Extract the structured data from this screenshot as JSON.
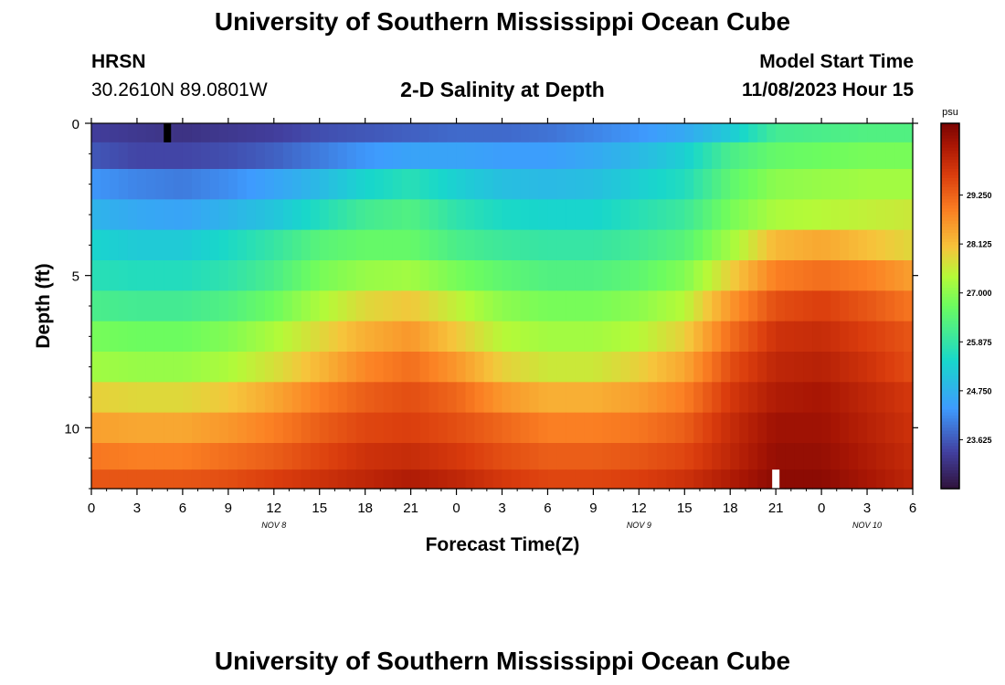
{
  "header": {
    "title": "University of Southern Mississippi Ocean Cube",
    "station": "HRSN",
    "coords": "30.2610N  89.0801W",
    "plot_title": "2-D Salinity at Depth",
    "start_label": "Model Start Time",
    "start_value": "11/08/2023 Hour 15"
  },
  "footer": {
    "title": "University of Southern Mississippi Ocean Cube"
  },
  "chart_data": {
    "type": "heatmap",
    "title": "2-D Salinity at Depth",
    "xlabel": "Forecast Time(Z)",
    "ylabel": "Depth (ft)",
    "x_hours": [
      0,
      3,
      6,
      9,
      12,
      15,
      18,
      21,
      24,
      27,
      30,
      33,
      36,
      39,
      42,
      45,
      48,
      51,
      54
    ],
    "x_tick_labels": [
      "0",
      "3",
      "6",
      "9",
      "12",
      "15",
      "18",
      "21",
      "0",
      "3",
      "6",
      "9",
      "12",
      "15",
      "18",
      "21",
      "0",
      "3",
      "6"
    ],
    "x_range": [
      0,
      54
    ],
    "y_ticks": [
      0,
      5,
      10
    ],
    "y_tick_labels": [
      "0",
      "5",
      "10"
    ],
    "y_range": [
      0,
      12
    ],
    "date_labels": [
      {
        "text": "NOV 8",
        "hour": 12
      },
      {
        "text": "NOV 9",
        "hour": 36
      },
      {
        "text": "NOV 10",
        "hour": 51
      }
    ],
    "depth_layers": [
      0.25,
      1.0,
      2.0,
      3.0,
      4.0,
      5.0,
      6.0,
      7.0,
      8.0,
      9.0,
      10.0,
      11.0,
      11.75
    ],
    "layer_keys_hours": [
      0,
      3,
      6,
      9,
      12,
      15,
      18,
      21,
      24,
      27,
      30,
      33,
      36,
      39,
      42,
      45,
      48,
      51,
      54
    ],
    "salinity": [
      [
        23.3,
        23.2,
        23.1,
        23.2,
        23.3,
        23.5,
        23.6,
        23.7,
        23.8,
        23.8,
        23.9,
        24.1,
        24.3,
        24.6,
        25.2,
        26.1,
        26.2,
        26.3,
        26.3
      ],
      [
        23.6,
        23.4,
        23.4,
        23.5,
        23.7,
        24.0,
        24.3,
        24.5,
        24.5,
        24.4,
        24.4,
        24.6,
        24.9,
        25.3,
        26.2,
        26.6,
        26.7,
        26.8,
        26.8
      ],
      [
        24.3,
        24.1,
        24.0,
        24.2,
        24.5,
        24.9,
        25.4,
        25.7,
        25.3,
        25.0,
        24.9,
        25.0,
        25.3,
        25.6,
        26.5,
        27.0,
        27.1,
        27.2,
        27.2
      ],
      [
        24.8,
        24.6,
        24.5,
        24.8,
        25.1,
        25.6,
        26.1,
        26.3,
        25.8,
        25.5,
        25.4,
        25.4,
        25.7,
        26.0,
        26.8,
        27.3,
        27.4,
        27.5,
        27.6
      ],
      [
        25.4,
        25.2,
        25.2,
        25.5,
        25.9,
        26.4,
        26.6,
        26.6,
        26.2,
        26.0,
        25.9,
        25.9,
        26.1,
        26.4,
        27.2,
        28.2,
        28.4,
        28.1,
        27.8
      ],
      [
        25.7,
        25.6,
        25.6,
        25.8,
        26.2,
        26.8,
        27.1,
        27.2,
        26.8,
        26.5,
        26.3,
        26.3,
        26.5,
        26.9,
        27.9,
        28.9,
        29.1,
        28.9,
        28.5
      ],
      [
        26.2,
        26.1,
        26.1,
        26.3,
        26.7,
        27.3,
        27.8,
        28.0,
        27.5,
        27.0,
        26.8,
        26.8,
        27.0,
        27.4,
        28.6,
        29.5,
        29.7,
        29.4,
        29.0
      ],
      [
        26.8,
        26.7,
        26.7,
        26.9,
        27.3,
        27.8,
        28.3,
        28.6,
        28.0,
        27.4,
        27.2,
        27.2,
        27.4,
        27.9,
        29.1,
        29.9,
        30.0,
        29.7,
        29.4
      ],
      [
        27.2,
        27.1,
        27.1,
        27.3,
        27.7,
        28.2,
        28.8,
        29.1,
        28.6,
        27.9,
        27.6,
        27.6,
        27.9,
        28.4,
        29.5,
        30.1,
        30.2,
        29.9,
        29.5
      ],
      [
        27.9,
        27.8,
        27.8,
        28.0,
        28.4,
        28.9,
        29.3,
        29.5,
        29.2,
        28.6,
        28.3,
        28.3,
        28.5,
        28.9,
        29.8,
        30.3,
        30.4,
        30.1,
        29.8
      ],
      [
        28.5,
        28.4,
        28.4,
        28.6,
        28.9,
        29.3,
        29.6,
        29.7,
        29.5,
        29.2,
        28.9,
        28.9,
        29.0,
        29.3,
        30.0,
        30.5,
        30.5,
        30.2,
        29.9
      ],
      [
        29.0,
        28.9,
        28.9,
        29.1,
        29.3,
        29.6,
        29.9,
        30.0,
        29.8,
        29.5,
        29.3,
        29.3,
        29.4,
        29.6,
        30.1,
        30.6,
        30.6,
        30.3,
        30.0
      ],
      [
        29.4,
        29.4,
        29.4,
        29.5,
        29.7,
        29.9,
        30.1,
        30.3,
        30.1,
        29.8,
        29.6,
        29.6,
        29.7,
        29.9,
        30.3,
        30.7,
        30.7,
        30.4,
        30.1
      ]
    ],
    "markers": [
      {
        "hour": 5,
        "depth": 0.25,
        "color": "#000000"
      },
      {
        "hour": 45,
        "depth": 11.75,
        "color": "#ffffff"
      }
    ],
    "colorbar": {
      "unit": "psu",
      "range": [
        22.5,
        30.9
      ],
      "ticks": [
        23.625,
        24.75,
        25.875,
        27.0,
        28.125,
        29.25
      ],
      "tick_labels": [
        "23.625",
        "24.750",
        "25.875",
        "27.000",
        "28.125",
        "29.250"
      ]
    }
  }
}
